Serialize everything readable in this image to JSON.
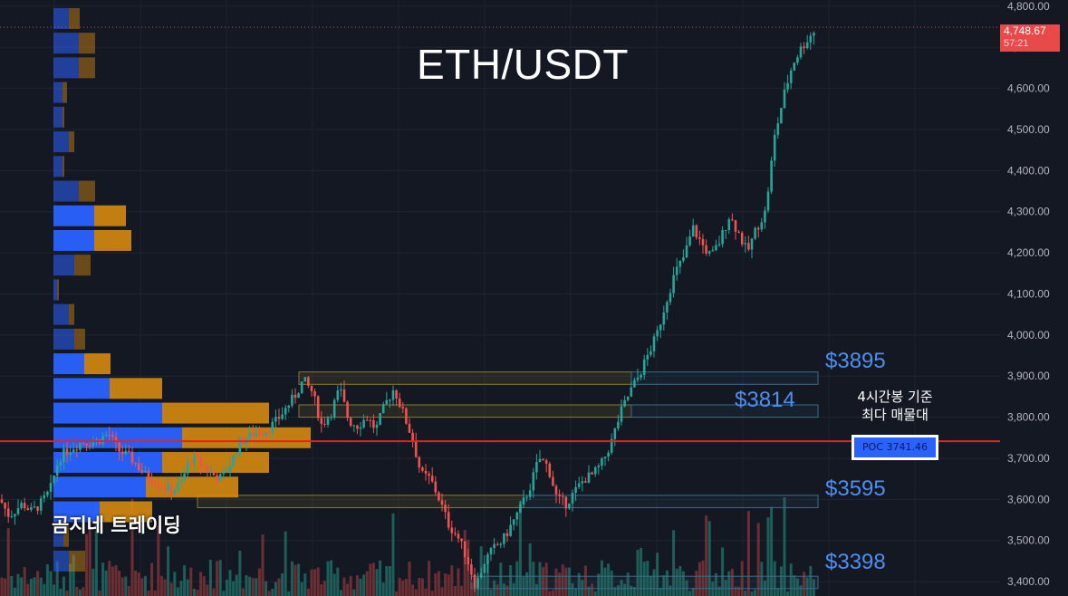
{
  "title": "ETH/USDT",
  "brand": "곰지네 트레이딩",
  "annotation": {
    "line1": "4시간봉 기준",
    "line2": "최다 매물대"
  },
  "poc": {
    "label": "POC  3741.46",
    "price": 3741.46
  },
  "current_price": {
    "value": "4,748.67",
    "countdown": "57:21",
    "price": 4748.67
  },
  "colors": {
    "background": "#141823",
    "up": "#26a69a",
    "down": "#ef5350",
    "profile_blue": "#2962ff",
    "profile_orange": "#d68910",
    "zone_border": "#3d6c8a",
    "poc_line": "#e82020",
    "label_blue": "#4d8ff0"
  },
  "zones": [
    {
      "label": "$3895",
      "low": 3880,
      "high": 3910
    },
    {
      "label": "$3814",
      "low": 3800,
      "high": 3830
    },
    {
      "label": "$3595",
      "low": 3580,
      "high": 3610
    },
    {
      "label": "$3398",
      "low": 3383,
      "high": 3413
    }
  ],
  "chart_data": {
    "type": "candlestick",
    "title": "ETH/USDT",
    "ylim": [
      3365,
      4815
    ],
    "y_ticks": [
      "4,800.00",
      "4,700.00",
      "4,600.00",
      "4,500.00",
      "4,400.00",
      "4,300.00",
      "4,200.00",
      "4,100.00",
      "4,000.00",
      "3,900.00",
      "3,800.00",
      "3,700.00",
      "3,600.00",
      "3,500.00",
      "3,400.00"
    ],
    "y_tick_values": [
      4800,
      4700,
      4600,
      4500,
      4400,
      4300,
      4200,
      4100,
      4000,
      3900,
      3800,
      3700,
      3600,
      3500,
      3400
    ],
    "path": [
      [
        0,
        3600
      ],
      [
        10,
        3560
      ],
      [
        25,
        3590
      ],
      [
        35,
        3570
      ],
      [
        45,
        3590
      ],
      [
        55,
        3620
      ],
      [
        65,
        3700
      ],
      [
        75,
        3720
      ],
      [
        90,
        3740
      ],
      [
        105,
        3740
      ],
      [
        120,
        3760
      ],
      [
        130,
        3720
      ],
      [
        145,
        3700
      ],
      [
        160,
        3660
      ],
      [
        175,
        3640
      ],
      [
        190,
        3620
      ],
      [
        200,
        3640
      ],
      [
        210,
        3700
      ],
      [
        220,
        3690
      ],
      [
        235,
        3660
      ],
      [
        245,
        3650
      ],
      [
        255,
        3690
      ],
      [
        265,
        3740
      ],
      [
        280,
        3760
      ],
      [
        295,
        3770
      ],
      [
        305,
        3790
      ],
      [
        315,
        3820
      ],
      [
        325,
        3850
      ],
      [
        335,
        3890
      ],
      [
        345,
        3860
      ],
      [
        355,
        3780
      ],
      [
        365,
        3810
      ],
      [
        375,
        3870
      ],
      [
        385,
        3790
      ],
      [
        395,
        3780
      ],
      [
        405,
        3800
      ],
      [
        415,
        3770
      ],
      [
        425,
        3830
      ],
      [
        435,
        3870
      ],
      [
        445,
        3810
      ],
      [
        455,
        3750
      ],
      [
        465,
        3660
      ],
      [
        475,
        3650
      ],
      [
        485,
        3600
      ],
      [
        495,
        3540
      ],
      [
        505,
        3510
      ],
      [
        515,
        3460
      ],
      [
        525,
        3390
      ],
      [
        535,
        3450
      ],
      [
        545,
        3480
      ],
      [
        555,
        3500
      ],
      [
        565,
        3540
      ],
      [
        575,
        3580
      ],
      [
        585,
        3630
      ],
      [
        595,
        3700
      ],
      [
        605,
        3680
      ],
      [
        615,
        3600
      ],
      [
        625,
        3590
      ],
      [
        635,
        3620
      ],
      [
        645,
        3650
      ],
      [
        655,
        3660
      ],
      [
        665,
        3690
      ],
      [
        675,
        3740
      ],
      [
        685,
        3810
      ],
      [
        695,
        3860
      ],
      [
        705,
        3900
      ],
      [
        715,
        3950
      ],
      [
        725,
        4000
      ],
      [
        735,
        4080
      ],
      [
        745,
        4150
      ],
      [
        755,
        4190
      ],
      [
        765,
        4260
      ],
      [
        775,
        4220
      ],
      [
        785,
        4190
      ],
      [
        795,
        4230
      ],
      [
        805,
        4290
      ],
      [
        815,
        4250
      ],
      [
        825,
        4200
      ],
      [
        835,
        4260
      ],
      [
        845,
        4300
      ],
      [
        855,
        4480
      ],
      [
        865,
        4580
      ],
      [
        875,
        4660
      ],
      [
        885,
        4700
      ],
      [
        895,
        4730
      ],
      [
        902,
        4748
      ]
    ],
    "volume_profile": [
      {
        "price": 4770,
        "buy": 17,
        "sell": 12
      },
      {
        "price": 4710,
        "buy": 28,
        "sell": 18
      },
      {
        "price": 4650,
        "buy": 28,
        "sell": 18
      },
      {
        "price": 4590,
        "buy": 10,
        "sell": 5
      },
      {
        "price": 4530,
        "buy": 10,
        "sell": 2
      },
      {
        "price": 4470,
        "buy": 17,
        "sell": 6
      },
      {
        "price": 4410,
        "buy": 10,
        "sell": 2
      },
      {
        "price": 4350,
        "buy": 28,
        "sell": 18
      },
      {
        "price": 4290,
        "buy": 45,
        "sell": 35
      },
      {
        "price": 4230,
        "buy": 45,
        "sell": 41
      },
      {
        "price": 4170,
        "buy": 23,
        "sell": 18
      },
      {
        "price": 4110,
        "buy": 4,
        "sell": 2
      },
      {
        "price": 4050,
        "buy": 17,
        "sell": 6
      },
      {
        "price": 3990,
        "buy": 23,
        "sell": 12
      },
      {
        "price": 3930,
        "buy": 34,
        "sell": 29
      },
      {
        "price": 3870,
        "buy": 62,
        "sell": 58
      },
      {
        "price": 3810,
        "buy": 120,
        "sell": 118
      },
      {
        "price": 3750,
        "buy": 142,
        "sell": 142
      },
      {
        "price": 3690,
        "buy": 120,
        "sell": 118
      },
      {
        "price": 3630,
        "buy": 102,
        "sell": 102
      },
      {
        "price": 3570,
        "buy": 51,
        "sell": 58
      },
      {
        "price": 3510,
        "buy": 11,
        "sell": 6
      },
      {
        "price": 3450,
        "buy": 17,
        "sell": 18
      }
    ]
  }
}
